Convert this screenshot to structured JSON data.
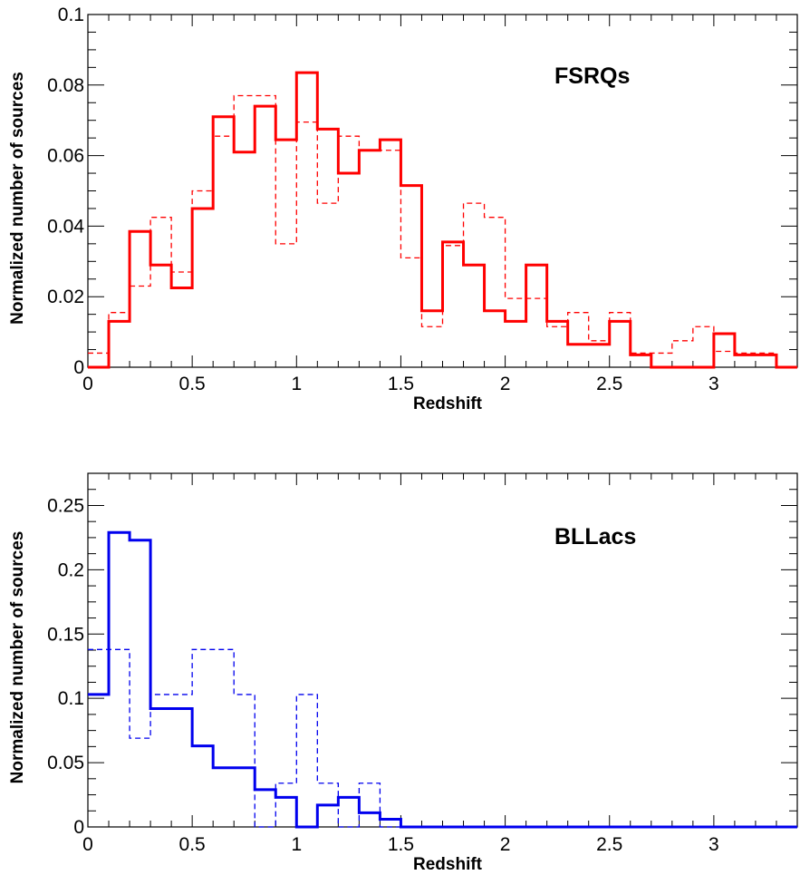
{
  "chart_data": [
    {
      "type": "histogram",
      "title": "FSRQs",
      "xlabel": "Redshift",
      "ylabel": "Normalized number of sources",
      "xlim": [
        0,
        3.4
      ],
      "ylim": [
        0,
        0.1
      ],
      "xticks": [
        0,
        0.5,
        1,
        1.5,
        2,
        2.5,
        3
      ],
      "xtick_labels": [
        "0",
        "0.5",
        "1",
        "1.5",
        "2",
        "2.5",
        "3"
      ],
      "yticks": [
        0,
        0.02,
        0.04,
        0.06,
        0.08,
        0.1
      ],
      "ytick_labels": [
        "0",
        "0.02",
        "0.04",
        "0.06",
        "0.08",
        "0.1"
      ],
      "bin_width": 0.1,
      "color": "#ff0000",
      "series": [
        {
          "style": "solid",
          "values": [
            0.0,
            0.013,
            0.0385,
            0.029,
            0.0225,
            0.045,
            0.071,
            0.061,
            0.074,
            0.0645,
            0.0835,
            0.0675,
            0.055,
            0.0615,
            0.0645,
            0.0515,
            0.016,
            0.0355,
            0.029,
            0.016,
            0.013,
            0.029,
            0.013,
            0.0065,
            0.0065,
            0.013,
            0.0035,
            0.0,
            0.0,
            0.0,
            0.0095,
            0.0035,
            0.0035,
            0.0,
            0.0
          ]
        },
        {
          "style": "dashed",
          "values": [
            0.004,
            0.0155,
            0.023,
            0.0425,
            0.027,
            0.05,
            0.0655,
            0.077,
            0.077,
            0.035,
            0.0695,
            0.0465,
            0.0655,
            0.0615,
            0.0615,
            0.031,
            0.0115,
            0.0345,
            0.0465,
            0.0425,
            0.0195,
            0.0195,
            0.0115,
            0.0155,
            0.0075,
            0.0155,
            0.004,
            0.004,
            0.0075,
            0.0115,
            0.0045,
            0.004,
            0.004,
            0.0,
            0.004
          ]
        }
      ]
    },
    {
      "type": "histogram",
      "title": "BLLacs",
      "xlabel": "Redshift",
      "ylabel": "Normalized number of sources",
      "xlim": [
        0,
        3.4
      ],
      "ylim": [
        0,
        0.275
      ],
      "xticks": [
        0,
        0.5,
        1,
        1.5,
        2,
        2.5,
        3
      ],
      "xtick_labels": [
        "0",
        "0.5",
        "1",
        "1.5",
        "2",
        "2.5",
        "3"
      ],
      "yticks": [
        0,
        0.05,
        0.1,
        0.15,
        0.2,
        0.25
      ],
      "ytick_labels": [
        "0",
        "0.05",
        "0.1",
        "0.15",
        "0.2",
        "0.25"
      ],
      "bin_width": 0.1,
      "color": "#0000ee",
      "series": [
        {
          "style": "solid",
          "values": [
            0.103,
            0.229,
            0.223,
            0.092,
            0.092,
            0.063,
            0.046,
            0.046,
            0.029,
            0.023,
            0.0,
            0.017,
            0.023,
            0.011,
            0.006,
            0,
            0,
            0,
            0,
            0,
            0,
            0,
            0,
            0,
            0,
            0,
            0,
            0,
            0,
            0,
            0,
            0,
            0,
            0
          ]
        },
        {
          "style": "dashed",
          "values": [
            0.138,
            0.138,
            0.069,
            0.103,
            0.103,
            0.138,
            0.138,
            0.103,
            0.0,
            0.034,
            0.103,
            0.034,
            0.0,
            0.034,
            0.0,
            0,
            0,
            0,
            0,
            0,
            0,
            0,
            0,
            0,
            0,
            0,
            0,
            0,
            0,
            0,
            0,
            0,
            0,
            0
          ]
        }
      ]
    }
  ]
}
